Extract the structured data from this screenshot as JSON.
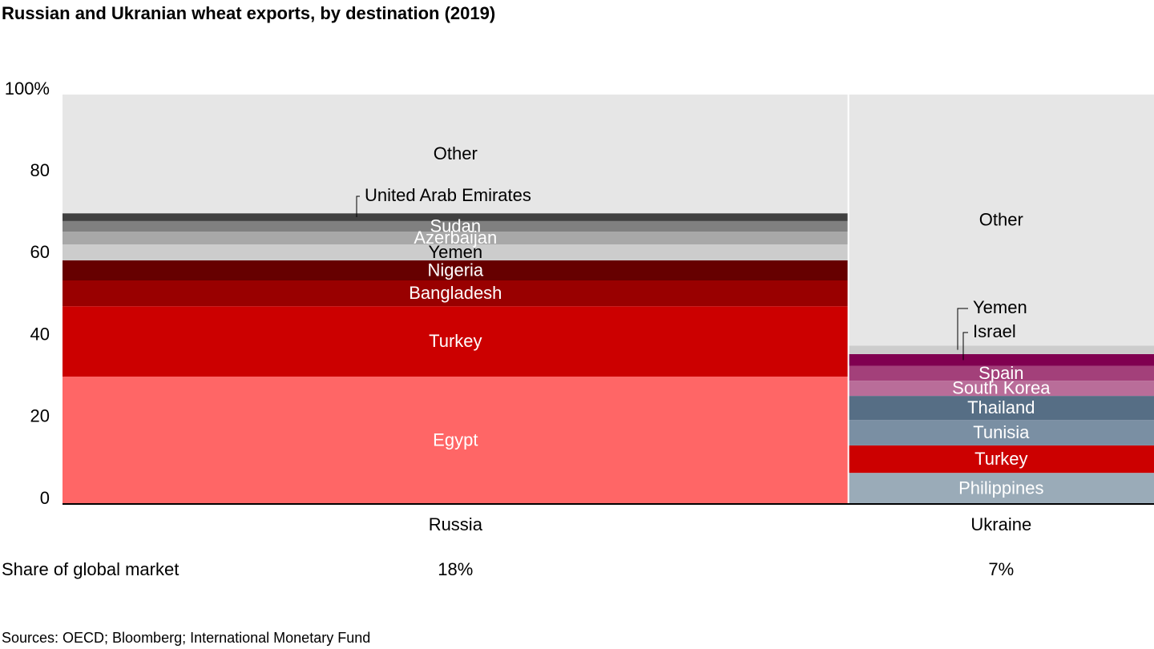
{
  "chart_data": {
    "type": "marimekko",
    "title": "Russian and Ukranian wheat exports, by destination (2019)",
    "ylim": [
      0,
      100
    ],
    "yticks": [
      0,
      20,
      40,
      60,
      80,
      {
        "value": 100,
        "label": "100%"
      }
    ],
    "share_title": "Share of global market",
    "source": "Sources: OECD; Bloomberg; International Monetary Fund",
    "columns": [
      {
        "name": "Russia",
        "share": 18,
        "share_label": "18%",
        "segments": [
          {
            "name": "Egypt",
            "color": "#ff6666",
            "value": 31.1
          },
          {
            "name": "Turkey",
            "color": "#cc0000",
            "value": 17.2
          },
          {
            "name": "Bangladesh",
            "color": "#990000",
            "value": 6.3
          },
          {
            "name": "Nigeria",
            "color": "#660000",
            "value": 4.9
          },
          {
            "name": "Yemen",
            "color": "#cccccc",
            "value": 3.9
          },
          {
            "name": "Azerbaijan",
            "color": "#a8a8a8",
            "value": 3.1
          },
          {
            "name": "Sudan",
            "color": "#808080",
            "value": 2.6
          },
          {
            "name": "United Arab Emirates",
            "color": "#404040",
            "value": 1.9
          },
          {
            "name": "Other",
            "color": "#e6e6e6",
            "value": 29.0
          }
        ]
      },
      {
        "name": "Ukraine",
        "share": 7,
        "share_label": "7%",
        "segments": [
          {
            "name": "Philippines",
            "color": "#9aabb8",
            "value": 7.6
          },
          {
            "name": "Turkey",
            "color": "#cc0000",
            "value": 6.7
          },
          {
            "name": "Tunisia",
            "color": "#7a8fa3",
            "value": 6.2
          },
          {
            "name": "Thailand",
            "color": "#566e85",
            "value": 5.9
          },
          {
            "name": "South Korea",
            "color": "#b96d99",
            "value": 3.7
          },
          {
            "name": "Spain",
            "color": "#a3407a",
            "value": 3.6
          },
          {
            "name": "Israel",
            "color": "#800050",
            "value": 2.9
          },
          {
            "name": "Yemen",
            "color": "#cccccc",
            "value": 2.1
          },
          {
            "name": "Other",
            "color": "#e6e6e6",
            "value": 61.3
          }
        ]
      }
    ]
  }
}
